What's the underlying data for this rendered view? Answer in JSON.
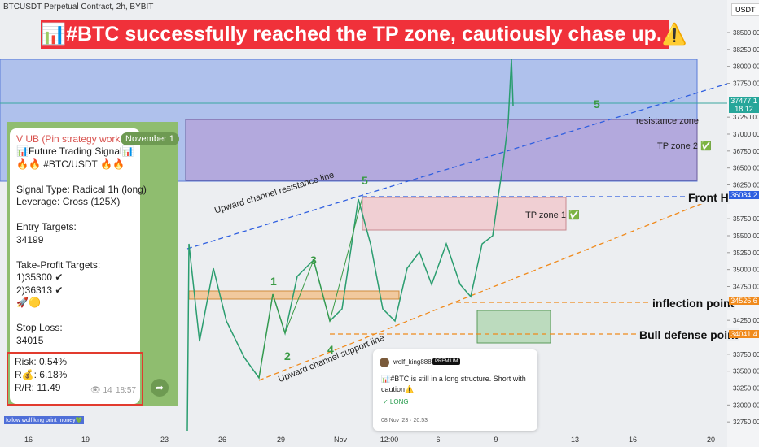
{
  "header": {
    "symbol": "BTCUSDT Perpetual Contract, 2h, BYBIT",
    "currency": "USDT"
  },
  "banner": "📊#BTC successfully reached the TP zone, cautiously chase up.⚠️",
  "price_axis": {
    "ylim": [
      32380,
      38980
    ],
    "ticks": [
      {
        "value": 38500,
        "label": "38500.00"
      },
      {
        "value": 38250,
        "label": "38250.00"
      },
      {
        "value": 38000,
        "label": "38000.00"
      },
      {
        "value": 37750,
        "label": "37750.00"
      },
      {
        "value": 37250,
        "label": "37250.00"
      },
      {
        "value": 37000,
        "label": "37000.00"
      },
      {
        "value": 36750,
        "label": "36750.00"
      },
      {
        "value": 36500,
        "label": "36500.00"
      },
      {
        "value": 36250,
        "label": "36250.00"
      },
      {
        "value": 35750,
        "label": "35750.00"
      },
      {
        "value": 35500,
        "label": "35500.00"
      },
      {
        "value": 35250,
        "label": "35250.00"
      },
      {
        "value": 35000,
        "label": "35000.00"
      },
      {
        "value": 34750,
        "label": "34750.00"
      },
      {
        "value": 34250,
        "label": "34250.00"
      },
      {
        "value": 33750,
        "label": "33750.00"
      },
      {
        "value": 33500,
        "label": "33500.00"
      },
      {
        "value": 33250,
        "label": "33250.00"
      },
      {
        "value": 33000,
        "label": "33000.00"
      },
      {
        "value": 32750,
        "label": "32750.00"
      }
    ],
    "tags": [
      {
        "value": 37477.1,
        "color": "#26a69a",
        "sub": "18:12"
      },
      {
        "value": 36084.2,
        "color": "#2f5fe0"
      },
      {
        "value": 34526.6,
        "color": "#f08a1c"
      },
      {
        "value": 34041.4,
        "color": "#f08a1c"
      }
    ]
  },
  "time_axis": [
    "16",
    "19",
    "23",
    "26",
    "29",
    "Nov",
    "12:00",
    "6",
    "9",
    "13",
    "16",
    "20"
  ],
  "annotations": {
    "waves": [
      "5",
      "5",
      "1",
      "2",
      "3",
      "4"
    ],
    "resistance_zone": "resistance zone",
    "tp_zone_2": "TP zone 2 ✅",
    "tp_zone_1": "TP zone 1 ✅",
    "front_high": "Front H",
    "inflection_point": "inflection point",
    "bull_defense_point": "Bull defense point",
    "resistance_line": "Upward channel resistance line",
    "support_line": "Upward channel support line"
  },
  "signal": {
    "sender": "V UB (Pin strategy works)",
    "date_pill": "November 1",
    "lines": [
      "📊Future Trading Signal📊",
      "🔥🔥 #BTC/USDT 🔥🔥",
      "",
      "Signal Type: Radical 1h (long)",
      "Leverage: Cross (125X)",
      "",
      "Entry Targets:",
      "34199",
      "",
      "Take-Profit Targets:",
      "1)35300 ✔",
      "2)36313 ✔",
      "🚀🟡",
      "",
      "Stop Loss:",
      "34015"
    ],
    "risk": [
      "Risk:  0.54%",
      "R💰:  6.18%",
      "R/R:  11.49"
    ],
    "views": "👁 14",
    "time": "18:57"
  },
  "idea": {
    "author": "wolf_king888",
    "badge": "PREMIUM",
    "text": "📊#BTC is still in a long structure. Short with caution⚠️",
    "direction": "✓ LONG",
    "date": "08 Nov '23 · 20:53"
  },
  "footer": "follow wolf king print money💚"
}
